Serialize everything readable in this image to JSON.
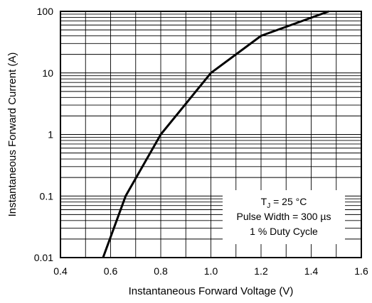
{
  "chart_data": {
    "type": "line",
    "title": "",
    "xlabel": "Instantaneous Forward Voltage (V)",
    "ylabel": "Instantaneous Forward Current (A)",
    "xlim": [
      0.4,
      1.6
    ],
    "ylim": [
      0.01,
      100
    ],
    "yscale": "log",
    "grid": true,
    "x_ticks": [
      "0.4",
      "0.6",
      "0.8",
      "1.0",
      "1.2",
      "1.4",
      "1.6"
    ],
    "y_ticks": [
      "0.01",
      "0.1",
      "1",
      "10",
      "100"
    ],
    "series": [
      {
        "x": [
          0.57,
          0.66,
          0.8,
          1.0,
          1.2,
          1.47
        ],
        "y": [
          0.01,
          0.1,
          1,
          10,
          40,
          100
        ],
        "color": "#000000"
      }
    ],
    "annotation": {
      "line1_prefix": "T",
      "line1_subscript": "J",
      "line1_suffix": " = 25 °C",
      "line2": "Pulse Width = 300 µs",
      "line3": "1 % Duty Cycle"
    }
  }
}
